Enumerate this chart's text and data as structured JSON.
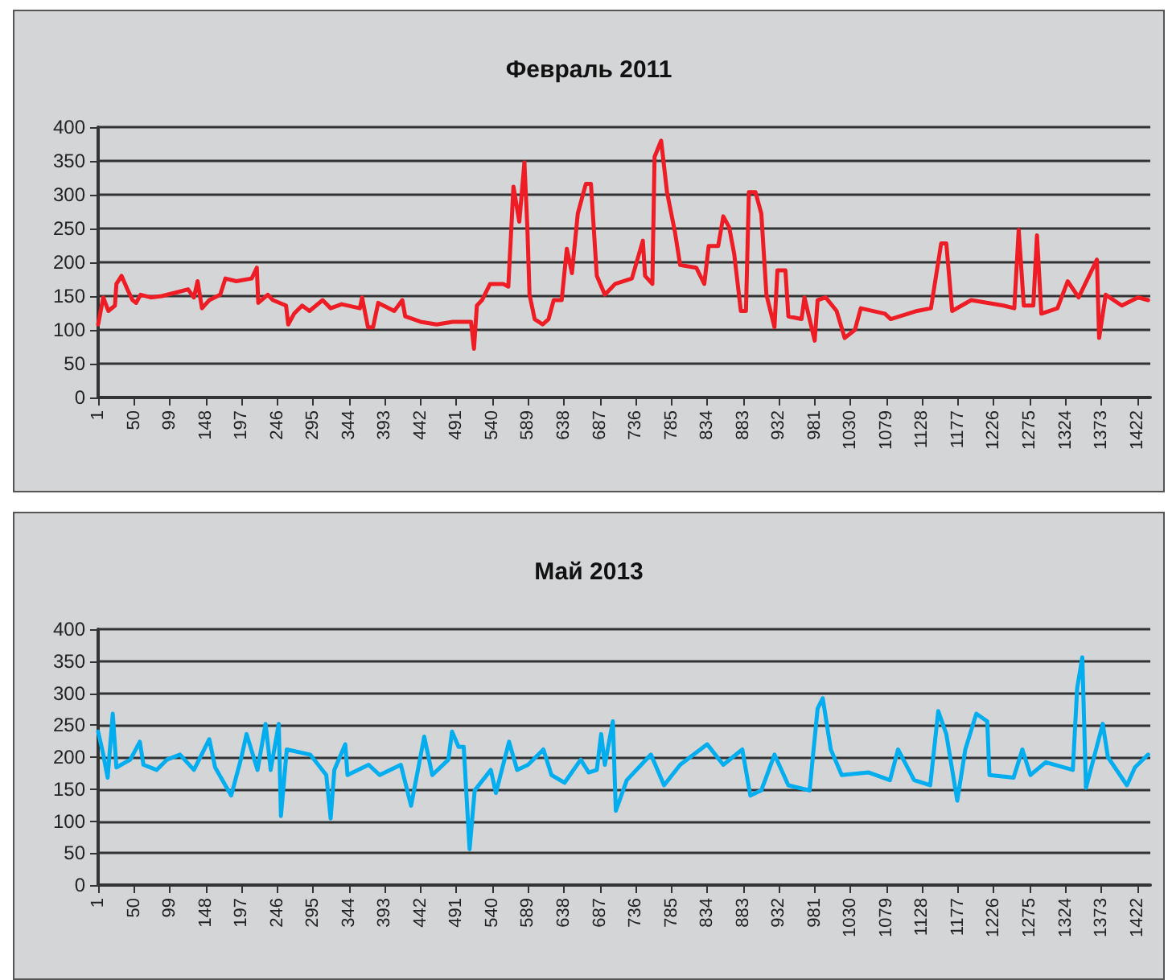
{
  "chart_data": [
    {
      "type": "line",
      "title": "Февраль 2011",
      "xlim": [
        1,
        1440
      ],
      "xticks": [
        1,
        50,
        99,
        148,
        197,
        246,
        295,
        344,
        393,
        442,
        491,
        540,
        589,
        638,
        687,
        736,
        785,
        834,
        883,
        932,
        981,
        1030,
        1079,
        1128,
        1177,
        1226,
        1275,
        1324,
        1373,
        1422
      ],
      "ylim": [
        0,
        400
      ],
      "yticks": [
        0,
        50,
        100,
        150,
        200,
        250,
        300,
        350,
        400
      ],
      "grid": "y",
      "marker": "none",
      "line_style": "solid",
      "series": [
        {
          "color": "#ee1c24",
          "x": [
            1,
            8,
            15,
            24,
            26,
            33,
            41,
            48,
            53,
            59,
            73,
            88,
            110,
            124,
            132,
            137,
            143,
            153,
            168,
            175,
            190,
            211,
            218,
            220,
            233,
            240,
            258,
            261,
            269,
            280,
            290,
            308,
            319,
            334,
            359,
            362,
            370,
            377,
            384,
            406,
            417,
            421,
            442,
            464,
            486,
            511,
            515,
            519,
            526,
            537,
            555,
            562,
            569,
            577,
            584,
            588,
            591,
            598,
            609,
            617,
            624,
            635,
            642,
            649,
            657,
            668,
            675,
            683,
            694,
            708,
            731,
            746,
            749,
            759,
            762,
            771,
            779,
            790,
            797,
            819,
            830,
            836,
            849,
            856,
            864,
            871,
            880,
            887,
            891,
            900,
            908,
            915,
            926,
            930,
            941,
            945,
            963,
            967,
            981,
            985,
            996,
            1011,
            1022,
            1036,
            1044,
            1077,
            1085,
            1121,
            1140,
            1154,
            1161,
            1169,
            1195,
            1239,
            1254,
            1260,
            1267,
            1280,
            1285,
            1291,
            1313,
            1327,
            1342,
            1367,
            1370,
            1379,
            1401,
            1423,
            1437
          ],
          "values": [
            108,
            148,
            128,
            136,
            168,
            180,
            160,
            144,
            140,
            152,
            148,
            150,
            156,
            160,
            148,
            172,
            132,
            144,
            152,
            176,
            172,
            176,
            192,
            140,
            152,
            144,
            136,
            108,
            124,
            136,
            128,
            144,
            132,
            138,
            132,
            148,
            104,
            104,
            140,
            128,
            144,
            120,
            112,
            108,
            112,
            112,
            72,
            136,
            144,
            168,
            168,
            164,
            312,
            260,
            348,
            252,
            152,
            116,
            108,
            116,
            144,
            144,
            220,
            184,
            272,
            316,
            316,
            180,
            152,
            168,
            176,
            232,
            180,
            168,
            356,
            380,
            304,
            244,
            196,
            192,
            168,
            224,
            224,
            268,
            252,
            212,
            128,
            128,
            304,
            304,
            272,
            152,
            104,
            188,
            188,
            120,
            116,
            148,
            84,
            144,
            148,
            128,
            88,
            100,
            132,
            124,
            116,
            128,
            132,
            228,
            228,
            128,
            144,
            136,
            132,
            248,
            136,
            136,
            240,
            124,
            132,
            172,
            148,
            204,
            88,
            152,
            136,
            148,
            144
          ]
        }
      ]
    },
    {
      "type": "line",
      "title": "Май 2013",
      "xlim": [
        1,
        1440
      ],
      "xticks": [
        1,
        50,
        99,
        148,
        197,
        246,
        295,
        344,
        393,
        442,
        491,
        540,
        589,
        638,
        687,
        736,
        785,
        834,
        883,
        932,
        981,
        1030,
        1079,
        1128,
        1177,
        1226,
        1275,
        1324,
        1373,
        1422
      ],
      "ylim": [
        0,
        400
      ],
      "yticks": [
        0,
        50,
        100,
        150,
        200,
        250,
        300,
        350,
        400
      ],
      "grid": "y",
      "marker": "none",
      "line_style": "solid",
      "series": [
        {
          "color": "#00aeef",
          "x": [
            1,
            8,
            14,
            21,
            26,
            45,
            58,
            63,
            81,
            95,
            113,
            132,
            153,
            161,
            183,
            197,
            204,
            219,
            230,
            237,
            248,
            251,
            259,
            291,
            313,
            319,
            324,
            339,
            342,
            371,
            386,
            415,
            429,
            447,
            458,
            480,
            485,
            494,
            501,
            509,
            516,
            538,
            545,
            563,
            574,
            589,
            610,
            621,
            639,
            661,
            672,
            683,
            689,
            694,
            705,
            709,
            724,
            757,
            775,
            797,
            834,
            856,
            882,
            893,
            908,
            926,
            945,
            974,
            985,
            992,
            1003,
            1018,
            1055,
            1084,
            1095,
            1117,
            1139,
            1150,
            1161,
            1176,
            1187,
            1202,
            1217,
            1220,
            1253,
            1265,
            1276,
            1297,
            1334,
            1340,
            1347,
            1352,
            1375,
            1382,
            1408,
            1419,
            1437
          ],
          "values": [
            240,
            204,
            168,
            268,
            184,
            196,
            224,
            188,
            180,
            196,
            204,
            180,
            228,
            184,
            140,
            200,
            236,
            180,
            252,
            180,
            252,
            108,
            212,
            204,
            172,
            104,
            180,
            220,
            172,
            188,
            172,
            188,
            124,
            232,
            172,
            196,
            240,
            216,
            216,
            56,
            148,
            180,
            144,
            224,
            180,
            188,
            212,
            172,
            160,
            196,
            176,
            180,
            236,
            188,
            256,
            116,
            164,
            204,
            156,
            188,
            220,
            188,
            212,
            140,
            148,
            204,
            156,
            148,
            276,
            292,
            212,
            172,
            176,
            164,
            212,
            164,
            156,
            272,
            236,
            132,
            212,
            268,
            256,
            172,
            168,
            212,
            172,
            192,
            180,
            308,
            356,
            152,
            252,
            200,
            156,
            184,
            204
          ]
        }
      ]
    }
  ]
}
